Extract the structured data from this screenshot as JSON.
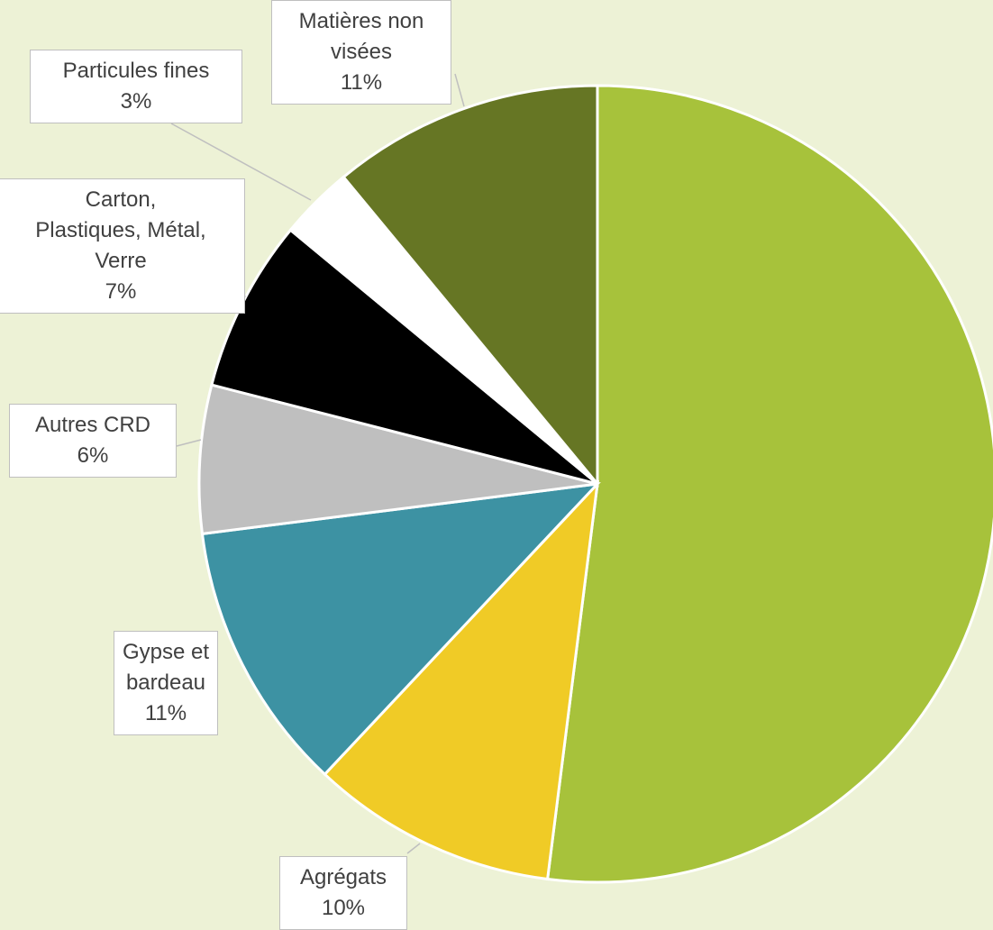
{
  "chart_data": {
    "type": "pie",
    "categories": [
      null,
      "Agrégats",
      "Gypse et\nbardeau",
      "Autres CRD",
      "Carton,\nPlastiques, Métal,\nVerre",
      "Particules fines",
      "Matières non\nvisées"
    ],
    "values": [
      52,
      10,
      11,
      6,
      7,
      3,
      11
    ],
    "value_labels": [
      null,
      "10%",
      "11%",
      "6%",
      "7%",
      "3%",
      "11%"
    ],
    "colors": [
      "#a7c23b",
      "#f0cb26",
      "#3d92a3",
      "#bfbfbf",
      "#000000",
      "#ffffff",
      "#667624"
    ]
  }
}
